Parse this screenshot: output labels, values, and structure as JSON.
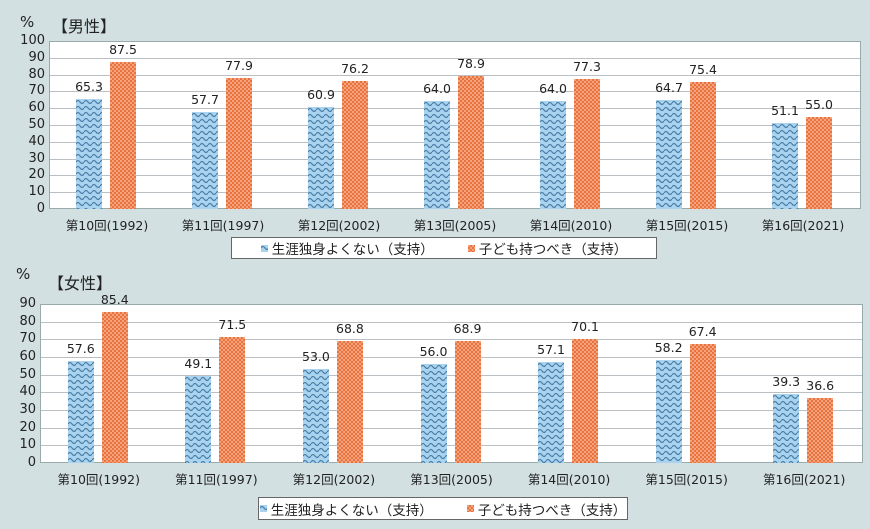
{
  "chart_data": [
    {
      "type": "bar",
      "title": "【男性】",
      "unit_label": "%",
      "ylabel": "%",
      "xlabel": "",
      "ylim": [
        0,
        100
      ],
      "yticks": [
        0,
        10,
        20,
        30,
        40,
        50,
        60,
        70,
        80,
        90,
        100
      ],
      "grid": true,
      "legend_position": "bottom",
      "categories": [
        "第10回(1992)",
        "第11回(1997)",
        "第12回(2002)",
        "第13回(2005)",
        "第14回(2010)",
        "第15回(2015)",
        "第16回(2021)"
      ],
      "series": [
        {
          "name": "生涯独身よくない（支持）",
          "color": "#a9d3ee",
          "pattern": "wave",
          "values": [
            65.3,
            57.7,
            60.9,
            64.0,
            64.0,
            64.7,
            51.1
          ]
        },
        {
          "name": "子ども持つべき（支持）",
          "color": "#f08a5b",
          "pattern": "checker",
          "values": [
            87.5,
            77.9,
            76.2,
            78.9,
            77.3,
            75.4,
            55.0
          ]
        }
      ]
    },
    {
      "type": "bar",
      "title": "【女性】",
      "unit_label": "%",
      "ylabel": "%",
      "xlabel": "",
      "ylim": [
        0,
        90
      ],
      "yticks": [
        0,
        10,
        20,
        30,
        40,
        50,
        60,
        70,
        80,
        90
      ],
      "grid": true,
      "legend_position": "bottom",
      "categories": [
        "第10回(1992)",
        "第11回(1997)",
        "第12回(2002)",
        "第13回(2005)",
        "第14回(2010)",
        "第15回(2015)",
        "第16回(2021)"
      ],
      "series": [
        {
          "name": "生涯独身よくない（支持）",
          "color": "#a9d3ee",
          "pattern": "wave",
          "values": [
            57.6,
            49.1,
            53.0,
            56.0,
            57.1,
            58.2,
            39.3
          ]
        },
        {
          "name": "子ども持つべき（支持）",
          "color": "#f08a5b",
          "pattern": "checker",
          "values": [
            85.4,
            71.5,
            68.8,
            68.9,
            70.1,
            67.4,
            36.6
          ]
        }
      ]
    }
  ]
}
